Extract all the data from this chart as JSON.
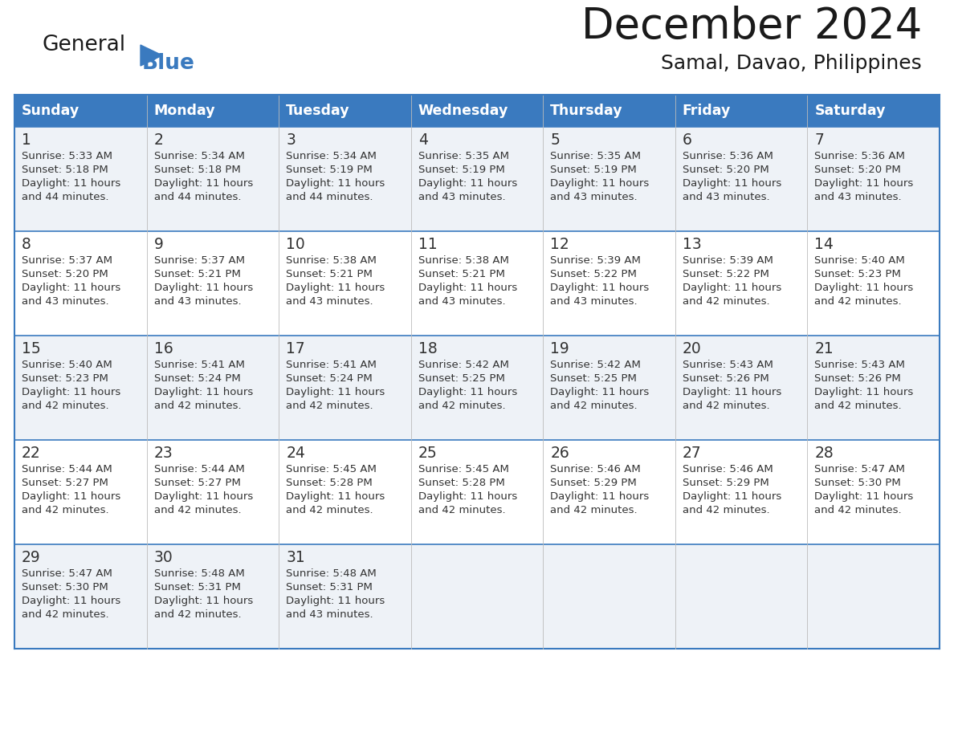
{
  "title": "December 2024",
  "subtitle": "Samal, Davao, Philippines",
  "header_color": "#3a7abf",
  "header_text_color": "#ffffff",
  "cell_bg_odd": "#eef2f7",
  "cell_bg_even": "#ffffff",
  "border_color": "#3a7abf",
  "text_color": "#333333",
  "days_of_week": [
    "Sunday",
    "Monday",
    "Tuesday",
    "Wednesday",
    "Thursday",
    "Friday",
    "Saturday"
  ],
  "calendar_data": [
    [
      {
        "day": "1",
        "sunrise": "5:33 AM",
        "sunset": "5:18 PM",
        "daylight_h": "11 hours",
        "daylight_m": "and 44 minutes."
      },
      {
        "day": "2",
        "sunrise": "5:34 AM",
        "sunset": "5:18 PM",
        "daylight_h": "11 hours",
        "daylight_m": "and 44 minutes."
      },
      {
        "day": "3",
        "sunrise": "5:34 AM",
        "sunset": "5:19 PM",
        "daylight_h": "11 hours",
        "daylight_m": "and 44 minutes."
      },
      {
        "day": "4",
        "sunrise": "5:35 AM",
        "sunset": "5:19 PM",
        "daylight_h": "11 hours",
        "daylight_m": "and 43 minutes."
      },
      {
        "day": "5",
        "sunrise": "5:35 AM",
        "sunset": "5:19 PM",
        "daylight_h": "11 hours",
        "daylight_m": "and 43 minutes."
      },
      {
        "day": "6",
        "sunrise": "5:36 AM",
        "sunset": "5:20 PM",
        "daylight_h": "11 hours",
        "daylight_m": "and 43 minutes."
      },
      {
        "day": "7",
        "sunrise": "5:36 AM",
        "sunset": "5:20 PM",
        "daylight_h": "11 hours",
        "daylight_m": "and 43 minutes."
      }
    ],
    [
      {
        "day": "8",
        "sunrise": "5:37 AM",
        "sunset": "5:20 PM",
        "daylight_h": "11 hours",
        "daylight_m": "and 43 minutes."
      },
      {
        "day": "9",
        "sunrise": "5:37 AM",
        "sunset": "5:21 PM",
        "daylight_h": "11 hours",
        "daylight_m": "and 43 minutes."
      },
      {
        "day": "10",
        "sunrise": "5:38 AM",
        "sunset": "5:21 PM",
        "daylight_h": "11 hours",
        "daylight_m": "and 43 minutes."
      },
      {
        "day": "11",
        "sunrise": "5:38 AM",
        "sunset": "5:21 PM",
        "daylight_h": "11 hours",
        "daylight_m": "and 43 minutes."
      },
      {
        "day": "12",
        "sunrise": "5:39 AM",
        "sunset": "5:22 PM",
        "daylight_h": "11 hours",
        "daylight_m": "and 43 minutes."
      },
      {
        "day": "13",
        "sunrise": "5:39 AM",
        "sunset": "5:22 PM",
        "daylight_h": "11 hours",
        "daylight_m": "and 42 minutes."
      },
      {
        "day": "14",
        "sunrise": "5:40 AM",
        "sunset": "5:23 PM",
        "daylight_h": "11 hours",
        "daylight_m": "and 42 minutes."
      }
    ],
    [
      {
        "day": "15",
        "sunrise": "5:40 AM",
        "sunset": "5:23 PM",
        "daylight_h": "11 hours",
        "daylight_m": "and 42 minutes."
      },
      {
        "day": "16",
        "sunrise": "5:41 AM",
        "sunset": "5:24 PM",
        "daylight_h": "11 hours",
        "daylight_m": "and 42 minutes."
      },
      {
        "day": "17",
        "sunrise": "5:41 AM",
        "sunset": "5:24 PM",
        "daylight_h": "11 hours",
        "daylight_m": "and 42 minutes."
      },
      {
        "day": "18",
        "sunrise": "5:42 AM",
        "sunset": "5:25 PM",
        "daylight_h": "11 hours",
        "daylight_m": "and 42 minutes."
      },
      {
        "day": "19",
        "sunrise": "5:42 AM",
        "sunset": "5:25 PM",
        "daylight_h": "11 hours",
        "daylight_m": "and 42 minutes."
      },
      {
        "day": "20",
        "sunrise": "5:43 AM",
        "sunset": "5:26 PM",
        "daylight_h": "11 hours",
        "daylight_m": "and 42 minutes."
      },
      {
        "day": "21",
        "sunrise": "5:43 AM",
        "sunset": "5:26 PM",
        "daylight_h": "11 hours",
        "daylight_m": "and 42 minutes."
      }
    ],
    [
      {
        "day": "22",
        "sunrise": "5:44 AM",
        "sunset": "5:27 PM",
        "daylight_h": "11 hours",
        "daylight_m": "and 42 minutes."
      },
      {
        "day": "23",
        "sunrise": "5:44 AM",
        "sunset": "5:27 PM",
        "daylight_h": "11 hours",
        "daylight_m": "and 42 minutes."
      },
      {
        "day": "24",
        "sunrise": "5:45 AM",
        "sunset": "5:28 PM",
        "daylight_h": "11 hours",
        "daylight_m": "and 42 minutes."
      },
      {
        "day": "25",
        "sunrise": "5:45 AM",
        "sunset": "5:28 PM",
        "daylight_h": "11 hours",
        "daylight_m": "and 42 minutes."
      },
      {
        "day": "26",
        "sunrise": "5:46 AM",
        "sunset": "5:29 PM",
        "daylight_h": "11 hours",
        "daylight_m": "and 42 minutes."
      },
      {
        "day": "27",
        "sunrise": "5:46 AM",
        "sunset": "5:29 PM",
        "daylight_h": "11 hours",
        "daylight_m": "and 42 minutes."
      },
      {
        "day": "28",
        "sunrise": "5:47 AM",
        "sunset": "5:30 PM",
        "daylight_h": "11 hours",
        "daylight_m": "and 42 minutes."
      }
    ],
    [
      {
        "day": "29",
        "sunrise": "5:47 AM",
        "sunset": "5:30 PM",
        "daylight_h": "11 hours",
        "daylight_m": "and 42 minutes."
      },
      {
        "day": "30",
        "sunrise": "5:48 AM",
        "sunset": "5:31 PM",
        "daylight_h": "11 hours",
        "daylight_m": "and 42 minutes."
      },
      {
        "day": "31",
        "sunrise": "5:48 AM",
        "sunset": "5:31 PM",
        "daylight_h": "11 hours",
        "daylight_m": "and 43 minutes."
      },
      null,
      null,
      null,
      null
    ]
  ]
}
